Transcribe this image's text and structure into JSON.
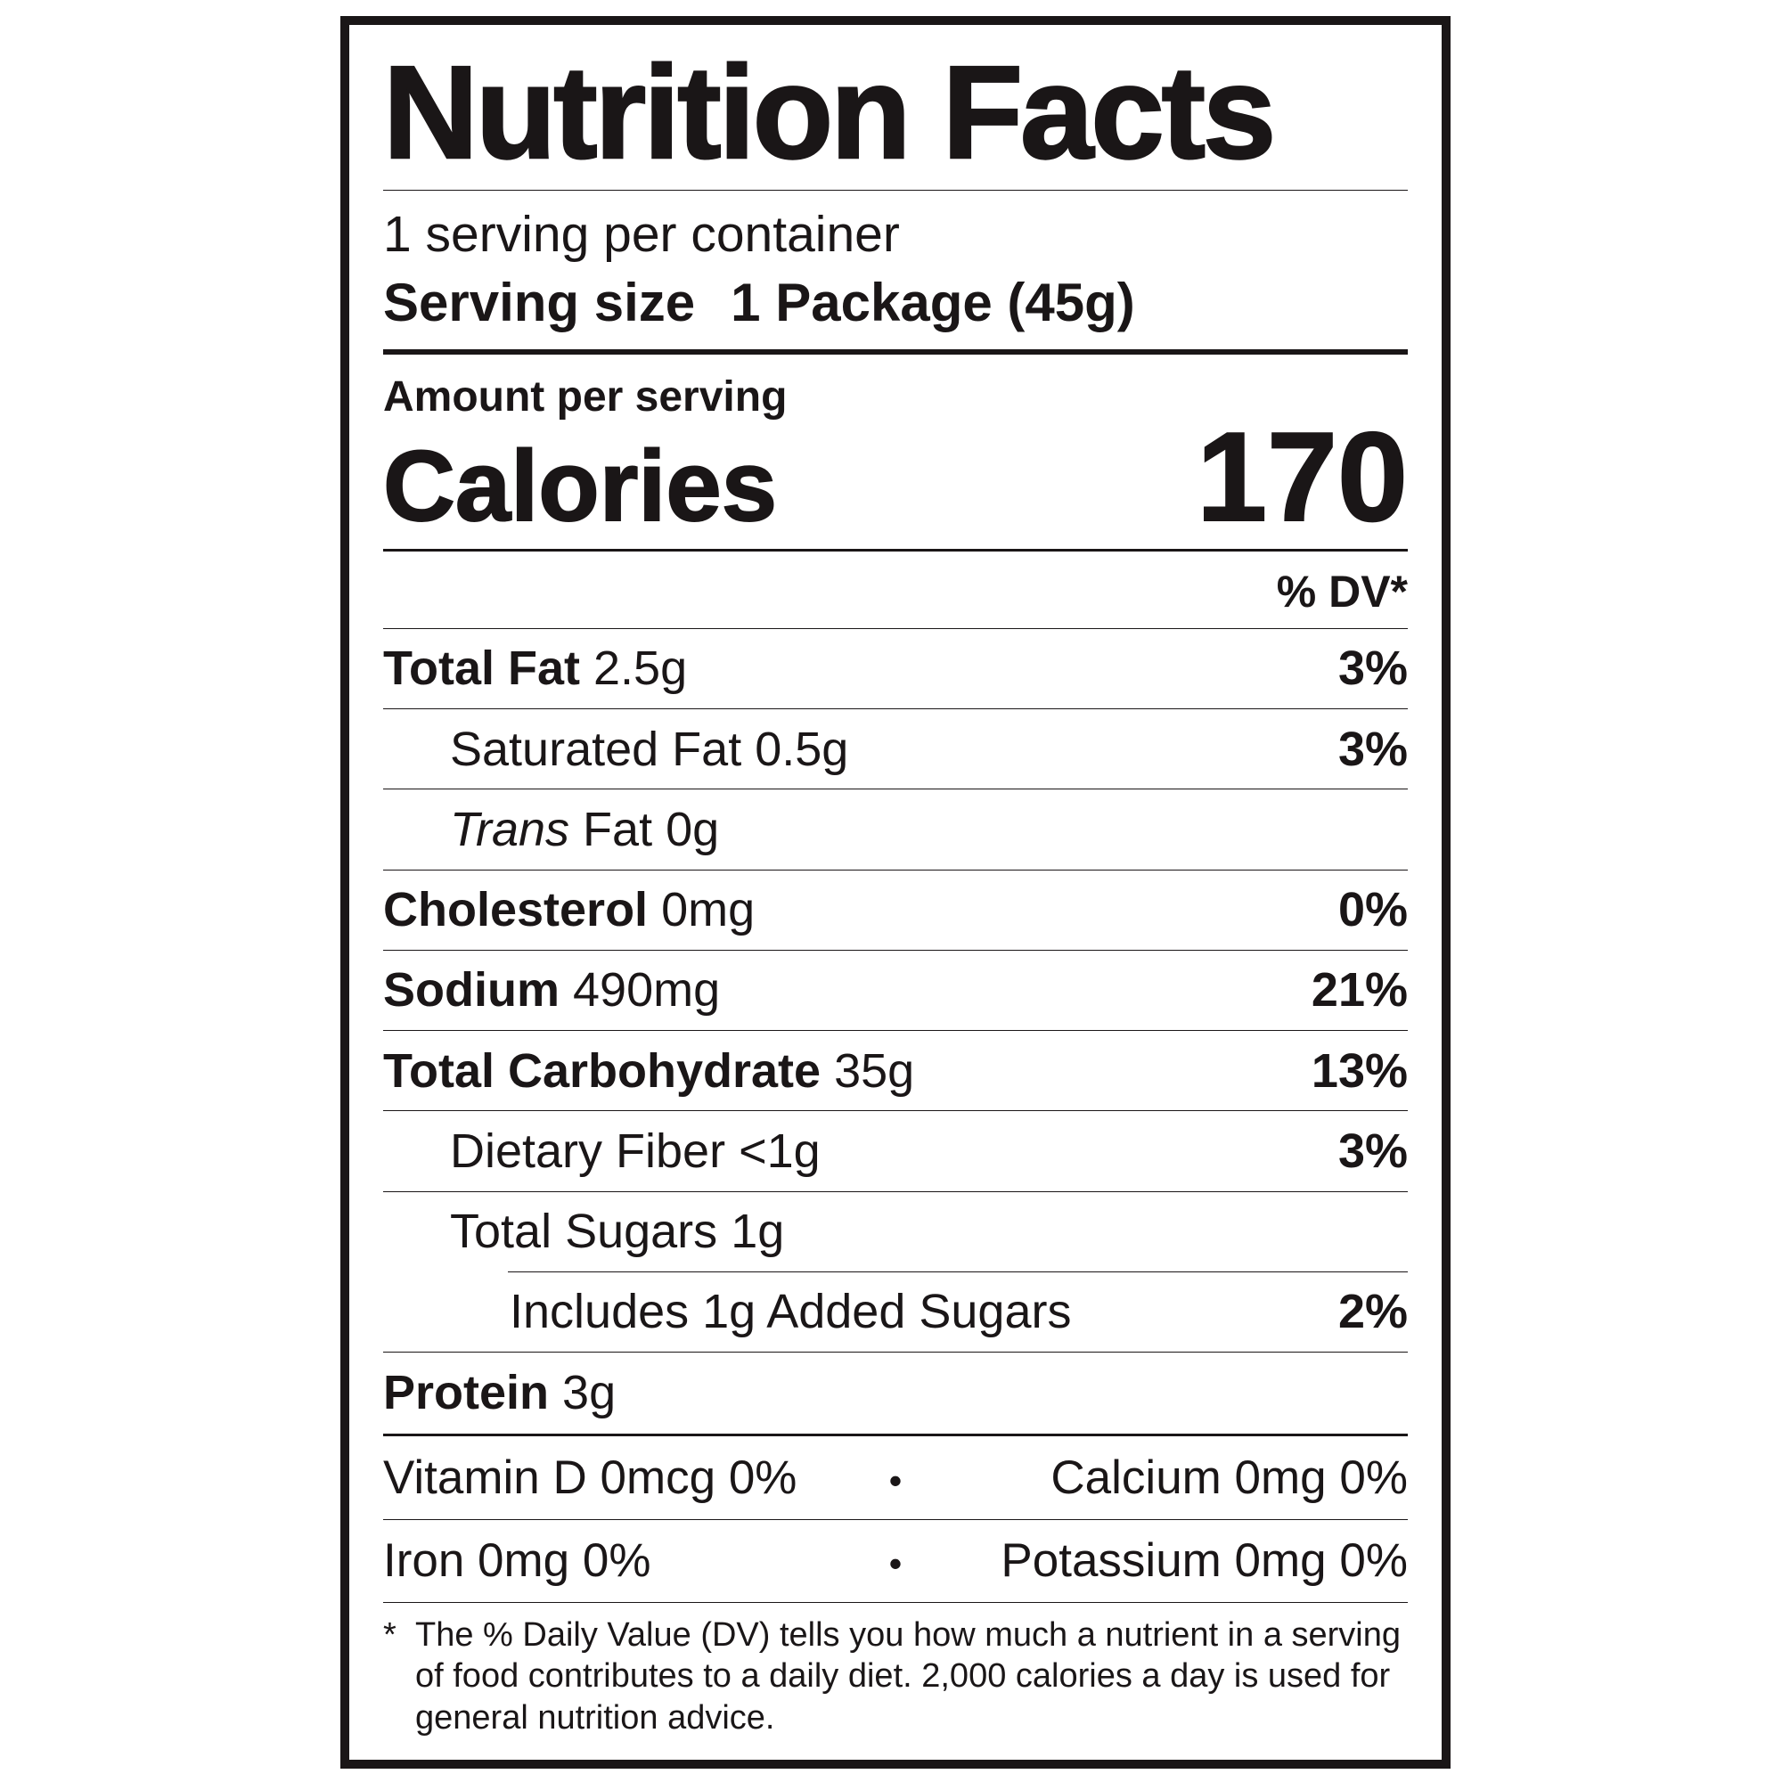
{
  "nutrition_label": {
    "title": "Nutrition Facts",
    "serving_info": {
      "servings_per_container": "1 serving per container",
      "serving_size_label": "Serving size",
      "serving_size_value": "1 Package (45g)"
    },
    "calories_section": {
      "amount_per_serving": "Amount per serving",
      "calories_label": "Calories",
      "calories_value": "170"
    },
    "daily_value_header": "% DV*",
    "nutrients": [
      {
        "name": "Total Fat",
        "amount": "2.5g",
        "daily_value": "3%"
      },
      {
        "name": "Saturated Fat",
        "amount": "0.5g",
        "daily_value": "3%"
      },
      {
        "name_italic": "Trans",
        "name": "Fat",
        "amount": "0g",
        "daily_value": ""
      },
      {
        "name": "Cholesterol",
        "amount": "0mg",
        "daily_value": "0%"
      },
      {
        "name": "Sodium",
        "amount": "490mg",
        "daily_value": "21%"
      },
      {
        "name": "Total Carbohydrate",
        "amount": "35g",
        "daily_value": "13%"
      },
      {
        "name": "Dietary Fiber",
        "amount": "<1g",
        "daily_value": "3%"
      },
      {
        "name": "Total Sugars",
        "amount": "1g",
        "daily_value": ""
      },
      {
        "name": "Includes 1g Added Sugars",
        "amount": "",
        "daily_value": "2%"
      },
      {
        "name": "Protein",
        "amount": "3g",
        "daily_value": ""
      }
    ],
    "micronutrients": [
      {
        "left": "Vitamin D 0mcg 0%",
        "bullet": "•",
        "right": "Calcium 0mg 0%"
      },
      {
        "left": "Iron 0mg 0%",
        "bullet": "•",
        "right": "Potassium 0mg 0%"
      }
    ],
    "footnote": {
      "marker": "*",
      "lines": [
        "The % Daily Value (DV) tells you how much a nutrient in a serving",
        "of food contributes to a daily diet. 2,000 calories a day is used for",
        "general nutrition advice."
      ]
    },
    "colors": {
      "ink": "#1a1617",
      "background": "#ffffff"
    }
  }
}
